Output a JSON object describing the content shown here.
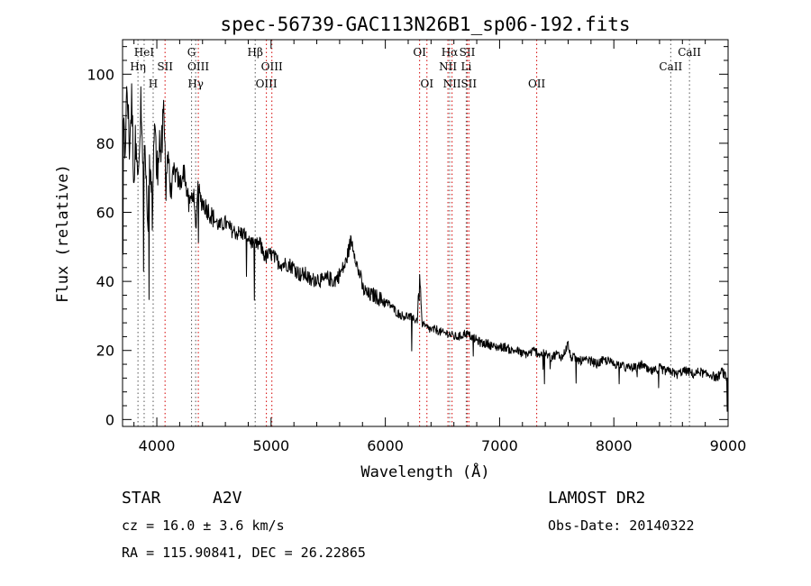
{
  "chart_data": {
    "type": "line",
    "title": "spec-56739-GAC113N26B1_sp06-192.fits",
    "xlabel": "Wavelength (Å)",
    "ylabel": "Flux (relative)",
    "xlim": [
      3700,
      9000
    ],
    "ylim": [
      -2,
      110
    ],
    "xticks": [
      4000,
      5000,
      6000,
      7000,
      8000,
      9000
    ],
    "yticks": [
      0,
      20,
      40,
      60,
      80,
      100
    ],
    "grid": false,
    "colors": {
      "line": "#000000",
      "emission_marker": "#d40000",
      "absorption_marker": "#555555"
    },
    "series": [
      {
        "x": [
          3700,
          3720,
          3740,
          3760,
          3780,
          3800,
          3820,
          3840,
          3860,
          3880,
          3900,
          3920,
          3940,
          3960,
          3980,
          4000,
          4020,
          4040,
          4060,
          4080,
          4100,
          4120,
          4150,
          4180,
          4200,
          4240,
          4280,
          4320,
          4340,
          4360,
          4380,
          4420,
          4460,
          4500,
          4550,
          4600,
          4650,
          4700,
          4750,
          4800,
          4850,
          4900,
          4950,
          5000,
          5050,
          5100,
          5150,
          5200,
          5250,
          5300,
          5350,
          5400,
          5450,
          5500,
          5550,
          5600,
          5650,
          5700,
          5720,
          5740,
          5760,
          5780,
          5800,
          5850,
          5900,
          5950,
          6000,
          6050,
          6100,
          6150,
          6200,
          6250,
          6280,
          6300,
          6320,
          6340,
          6400,
          6450,
          6500,
          6550,
          6600,
          6650,
          6700,
          6750,
          6800,
          6850,
          6900,
          6950,
          7000,
          7050,
          7100,
          7150,
          7200,
          7250,
          7300,
          7350,
          7400,
          7450,
          7500,
          7550,
          7600,
          7620,
          7650,
          7700,
          7750,
          7800,
          7850,
          7900,
          7950,
          8000,
          8050,
          8100,
          8150,
          8200,
          8250,
          8300,
          8350,
          8400,
          8450,
          8500,
          8550,
          8600,
          8650,
          8700,
          8750,
          8800,
          8850,
          8900,
          8950,
          9000
        ],
        "y": [
          88,
          78,
          95,
          80,
          92,
          70,
          85,
          68,
          90,
          72,
          80,
          58,
          75,
          60,
          88,
          70,
          82,
          76,
          88,
          70,
          78,
          65,
          72,
          70,
          68,
          72,
          62,
          66,
          55,
          68,
          64,
          62,
          60,
          58,
          56,
          57,
          55,
          54,
          54,
          53,
          50,
          51,
          47,
          48,
          46,
          45,
          45,
          44,
          42,
          42,
          40,
          41,
          40,
          41,
          40,
          42,
          45,
          52,
          50,
          47,
          43,
          42,
          38,
          36,
          36,
          35,
          34,
          33,
          31,
          30,
          30,
          29,
          29,
          43,
          28,
          27,
          26,
          26,
          25,
          25,
          24,
          24,
          25,
          24,
          23,
          22,
          22,
          21,
          21,
          21,
          20,
          20,
          19,
          19,
          20,
          19,
          19,
          18,
          19,
          18,
          22,
          18,
          18,
          17,
          17,
          17,
          16,
          17,
          17,
          16,
          16,
          15,
          15,
          15,
          16,
          14,
          14,
          15,
          14,
          14,
          13,
          14,
          14,
          13,
          14,
          13,
          13,
          12,
          14,
          11
        ]
      }
    ],
    "line_markers": [
      {
        "label": "HeI",
        "x": 3889,
        "kind": "absorption",
        "row": 1
      },
      {
        "label": "Hη",
        "x": 3835,
        "kind": "absorption",
        "row": 2
      },
      {
        "label": "SII",
        "x": 4072,
        "kind": "emission",
        "row": 2
      },
      {
        "label": "H",
        "x": 3968,
        "kind": "absorption",
        "row": 3
      },
      {
        "label": "G",
        "x": 4304,
        "kind": "absorption",
        "row": 1
      },
      {
        "label": "OIII",
        "x": 4363,
        "kind": "emission",
        "row": 2
      },
      {
        "label": "Hγ",
        "x": 4340,
        "kind": "absorption",
        "row": 3
      },
      {
        "label": "Hβ",
        "x": 4861,
        "kind": "absorption",
        "row": 1
      },
      {
        "label": "OIII",
        "x": 5007,
        "kind": "emission",
        "row": 2
      },
      {
        "label": "OIII",
        "x": 4959,
        "kind": "emission",
        "row": 3
      },
      {
        "label": "OI",
        "x": 6300,
        "kind": "emission",
        "row": 1
      },
      {
        "label": "OI",
        "x": 6364,
        "kind": "emission",
        "row": 3
      },
      {
        "label": "Hα",
        "x": 6563,
        "kind": "absorption",
        "row": 1
      },
      {
        "label": "SII",
        "x": 6717,
        "kind": "emission",
        "row": 1
      },
      {
        "label": "NII",
        "x": 6548,
        "kind": "emission",
        "row": 2
      },
      {
        "label": "Li",
        "x": 6708,
        "kind": "absorption",
        "row": 2
      },
      {
        "label": "NII",
        "x": 6584,
        "kind": "emission",
        "row": 3
      },
      {
        "label": "SII",
        "x": 6731,
        "kind": "emission",
        "row": 3
      },
      {
        "label": "OII",
        "x": 7325,
        "kind": "emission",
        "row": 3
      },
      {
        "label": "CaII",
        "x": 8662,
        "kind": "absorption",
        "row": 1
      },
      {
        "label": "CaII",
        "x": 8498,
        "kind": "absorption",
        "row": 2
      }
    ]
  },
  "info": {
    "object_class": "STAR",
    "subclass": "A2V",
    "survey": "LAMOST DR2",
    "cz": "cz = 16.0 ± 3.6 km/s",
    "obs_date": "Obs-Date: 20140322",
    "coords": "RA = 115.90841, DEC =  26.22865"
  }
}
